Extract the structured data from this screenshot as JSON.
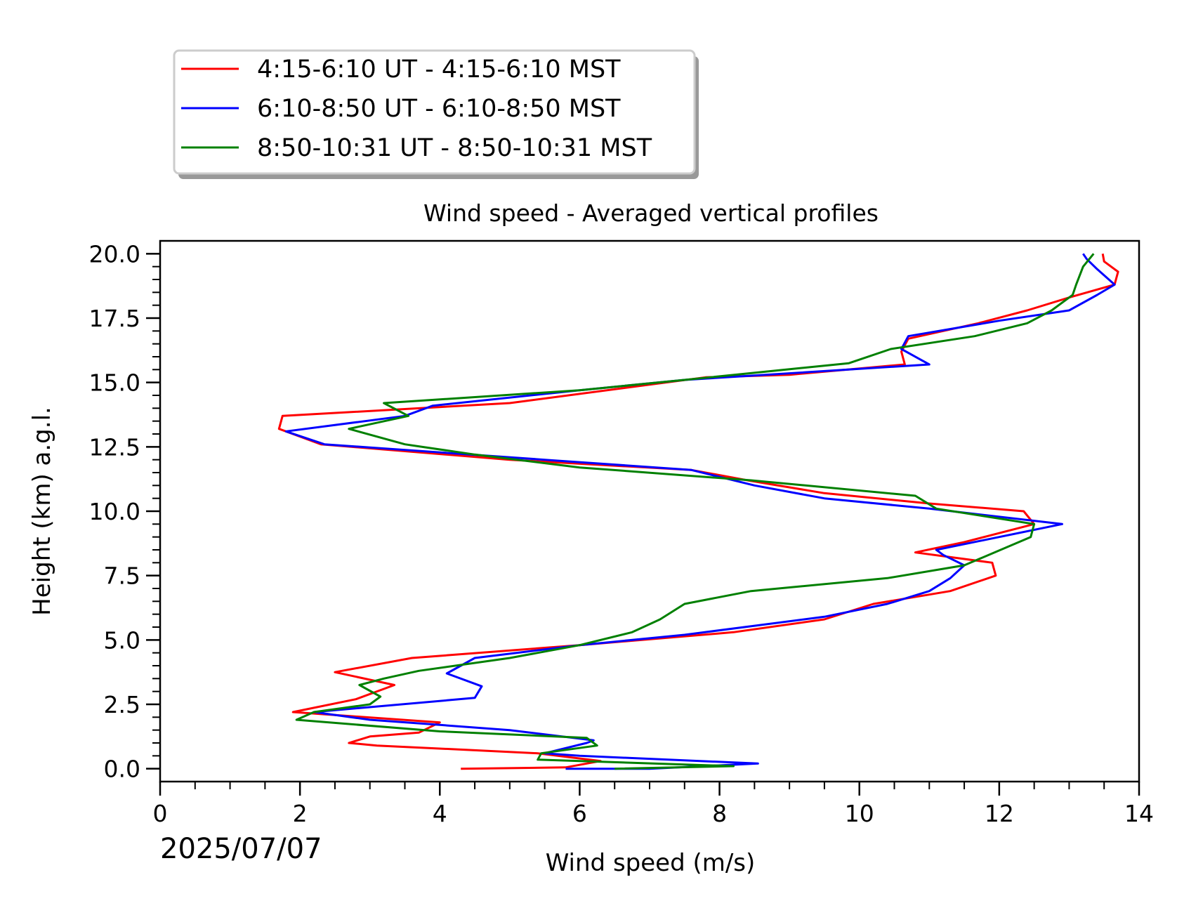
{
  "chart_data": {
    "type": "line",
    "title": "Wind speed - Averaged vertical profiles",
    "xlabel": "Wind speed (m/s)",
    "ylabel": "Height (km) a.g.l.",
    "date_label": "2025/07/07",
    "xlim": [
      0,
      14
    ],
    "ylim": [
      -0.5,
      20.5
    ],
    "x_ticks": [
      0,
      2,
      4,
      6,
      8,
      10,
      12,
      14
    ],
    "y_ticks": [
      0.0,
      2.5,
      5.0,
      7.5,
      10.0,
      12.5,
      15.0,
      17.5,
      20.0
    ],
    "x_tick_labels": [
      "0",
      "2",
      "4",
      "6",
      "8",
      "10",
      "12",
      "14"
    ],
    "y_tick_labels": [
      "0.0",
      "2.5",
      "5.0",
      "7.5",
      "10.0",
      "12.5",
      "15.0",
      "17.5",
      "20.0"
    ],
    "legend_position": "above plot, top-left",
    "grid": false,
    "series": [
      {
        "name": "4:15-6:10 UT - 4:15-6:10 MST",
        "color": "#ff0000",
        "points": [
          [
            4.3,
            0.0
          ],
          [
            5.8,
            0.05
          ],
          [
            6.3,
            0.3
          ],
          [
            5.4,
            0.6
          ],
          [
            3.1,
            0.9
          ],
          [
            2.7,
            1.0
          ],
          [
            3.0,
            1.25
          ],
          [
            3.7,
            1.4
          ],
          [
            4.0,
            1.8
          ],
          [
            1.9,
            2.2
          ],
          [
            2.8,
            2.7
          ],
          [
            3.35,
            3.25
          ],
          [
            2.5,
            3.75
          ],
          [
            3.6,
            4.3
          ],
          [
            6.0,
            4.8
          ],
          [
            8.2,
            5.3
          ],
          [
            9.5,
            5.8
          ],
          [
            10.2,
            6.4
          ],
          [
            11.3,
            6.9
          ],
          [
            11.95,
            7.5
          ],
          [
            11.9,
            8.0
          ],
          [
            10.8,
            8.4
          ],
          [
            11.5,
            8.8
          ],
          [
            12.5,
            9.5
          ],
          [
            12.35,
            10.0
          ],
          [
            11.0,
            10.3
          ],
          [
            9.5,
            10.7
          ],
          [
            8.4,
            11.2
          ],
          [
            7.6,
            11.6
          ],
          [
            5.0,
            12.0
          ],
          [
            2.3,
            12.6
          ],
          [
            1.7,
            13.2
          ],
          [
            1.75,
            13.7
          ],
          [
            5.0,
            14.2
          ],
          [
            7.8,
            15.2
          ],
          [
            9.0,
            15.3
          ],
          [
            10.65,
            15.7
          ],
          [
            10.6,
            16.2
          ],
          [
            10.7,
            16.7
          ],
          [
            11.7,
            17.3
          ],
          [
            12.4,
            17.8
          ],
          [
            13.0,
            18.3
          ],
          [
            13.65,
            18.8
          ],
          [
            13.7,
            19.3
          ],
          [
            13.5,
            19.7
          ],
          [
            13.48,
            20.0
          ]
        ]
      },
      {
        "name": "6:10-8:50 UT - 6:10-8:50 MST",
        "color": "#0000ff",
        "points": [
          [
            5.8,
            0.0
          ],
          [
            7.0,
            0.0
          ],
          [
            8.55,
            0.2
          ],
          [
            6.0,
            0.5
          ],
          [
            5.5,
            0.6
          ],
          [
            6.1,
            1.0
          ],
          [
            6.2,
            1.1
          ],
          [
            5.0,
            1.5
          ],
          [
            4.0,
            1.7
          ],
          [
            3.0,
            1.9
          ],
          [
            2.2,
            2.2
          ],
          [
            4.5,
            2.75
          ],
          [
            4.6,
            3.2
          ],
          [
            4.1,
            3.7
          ],
          [
            4.5,
            4.3
          ],
          [
            6.0,
            4.8
          ],
          [
            7.5,
            5.2
          ],
          [
            9.5,
            5.9
          ],
          [
            10.4,
            6.4
          ],
          [
            11.0,
            6.9
          ],
          [
            11.3,
            7.4
          ],
          [
            11.5,
            7.9
          ],
          [
            11.2,
            8.3
          ],
          [
            11.1,
            8.5
          ],
          [
            12.0,
            9.0
          ],
          [
            12.9,
            9.5
          ],
          [
            11.0,
            10.1
          ],
          [
            9.5,
            10.5
          ],
          [
            8.5,
            11.0
          ],
          [
            7.6,
            11.6
          ],
          [
            5.5,
            12.0
          ],
          [
            2.35,
            12.6
          ],
          [
            1.8,
            13.1
          ],
          [
            3.5,
            13.7
          ],
          [
            3.9,
            14.1
          ],
          [
            6.0,
            14.7
          ],
          [
            7.5,
            15.1
          ],
          [
            11.0,
            15.7
          ],
          [
            10.6,
            16.3
          ],
          [
            10.7,
            16.8
          ],
          [
            12.0,
            17.4
          ],
          [
            13.0,
            17.8
          ],
          [
            13.4,
            18.4
          ],
          [
            13.65,
            18.8
          ],
          [
            13.4,
            19.4
          ],
          [
            13.25,
            19.8
          ],
          [
            13.2,
            20.0
          ]
        ]
      },
      {
        "name": "8:50-10:31 UT - 8:50-10:31 MST",
        "color": "#008000",
        "points": [
          [
            6.5,
            0.0
          ],
          [
            8.2,
            0.1
          ],
          [
            5.4,
            0.35
          ],
          [
            5.45,
            0.6
          ],
          [
            6.25,
            0.9
          ],
          [
            6.1,
            1.2
          ],
          [
            4.0,
            1.45
          ],
          [
            1.95,
            1.9
          ],
          [
            2.2,
            2.2
          ],
          [
            3.0,
            2.5
          ],
          [
            3.15,
            2.8
          ],
          [
            2.85,
            3.25
          ],
          [
            3.2,
            3.5
          ],
          [
            3.7,
            3.8
          ],
          [
            5.0,
            4.3
          ],
          [
            6.0,
            4.8
          ],
          [
            6.75,
            5.3
          ],
          [
            7.15,
            5.8
          ],
          [
            7.5,
            6.4
          ],
          [
            8.45,
            6.9
          ],
          [
            10.4,
            7.4
          ],
          [
            11.5,
            7.9
          ],
          [
            12.45,
            9.0
          ],
          [
            12.5,
            9.5
          ],
          [
            11.1,
            10.1
          ],
          [
            10.8,
            10.6
          ],
          [
            8.45,
            11.2
          ],
          [
            6.0,
            11.7
          ],
          [
            4.5,
            12.2
          ],
          [
            3.5,
            12.6
          ],
          [
            2.7,
            13.2
          ],
          [
            3.55,
            13.7
          ],
          [
            3.2,
            14.2
          ],
          [
            6.0,
            14.7
          ],
          [
            7.5,
            15.1
          ],
          [
            9.85,
            15.75
          ],
          [
            10.45,
            16.3
          ],
          [
            11.65,
            16.8
          ],
          [
            12.4,
            17.3
          ],
          [
            12.75,
            17.8
          ],
          [
            13.05,
            18.4
          ],
          [
            13.1,
            18.8
          ],
          [
            13.2,
            19.5
          ],
          [
            13.35,
            20.0
          ]
        ]
      }
    ]
  }
}
